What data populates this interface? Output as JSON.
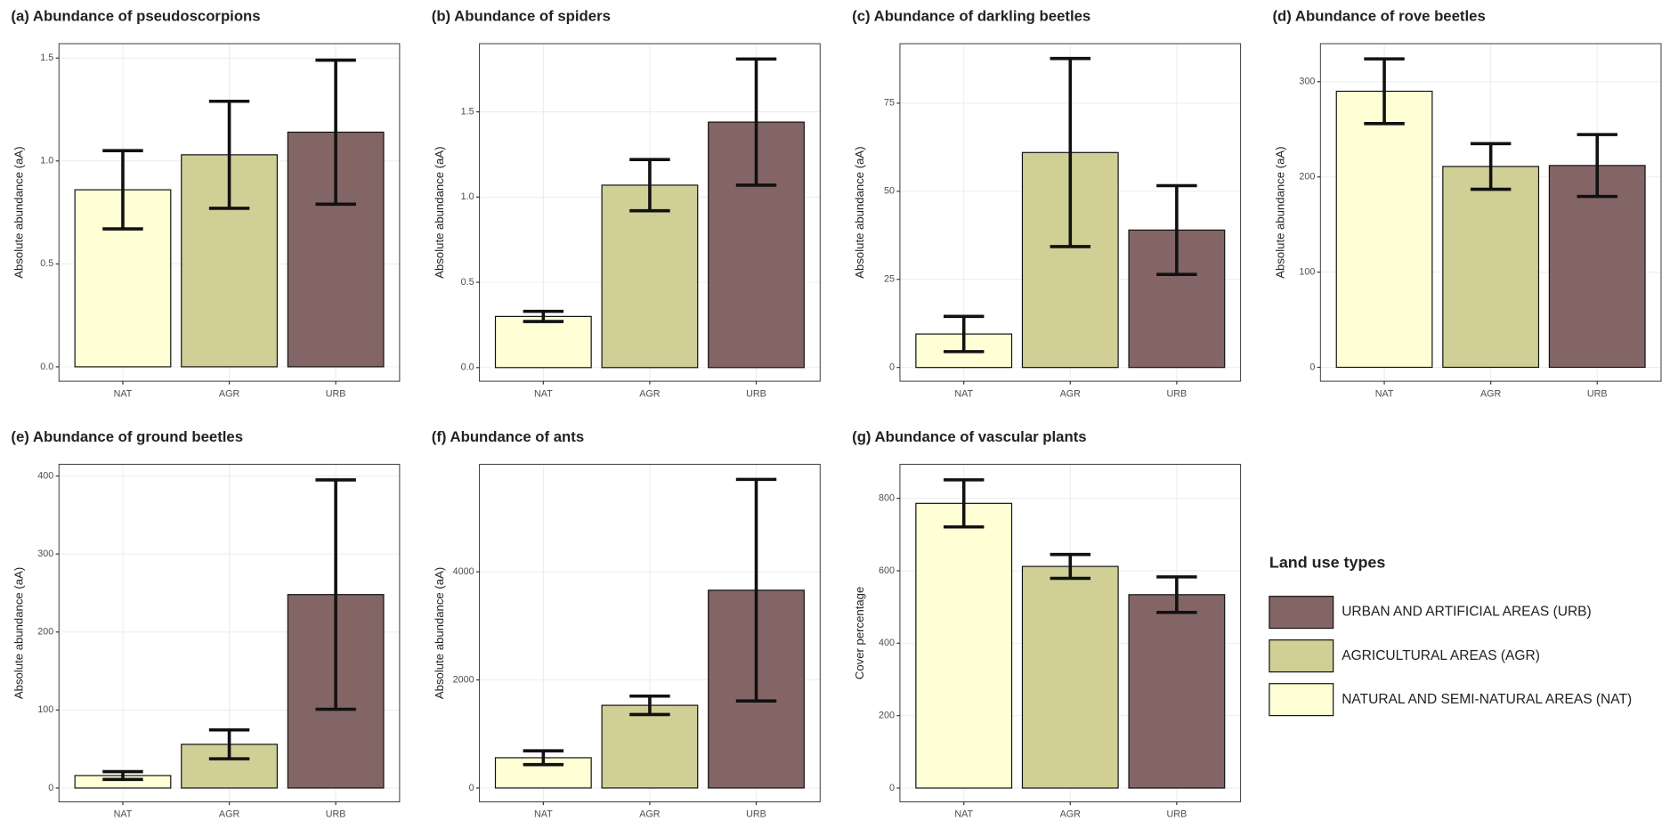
{
  "chart_data": [
    {
      "type": "bar",
      "title": "(a) Abundance of pseudoscorpions",
      "y_label": "Absolute abundance (aA)",
      "categories": [
        "NAT",
        "AGR",
        "URB"
      ],
      "values": [
        0.86,
        1.03,
        1.14
      ],
      "errors": [
        0.19,
        0.26,
        0.35
      ],
      "colors": [
        "#ffffd6",
        "#d0cf96",
        "#836566"
      ],
      "ylim": [
        -0.07,
        1.57
      ],
      "yticks": [
        {
          "value": 0,
          "label": "0.0"
        },
        0.5,
        {
          "value": 1,
          "label": "1.0"
        },
        1.5
      ],
      "grid": true
    },
    {
      "type": "bar",
      "title": "(b) Abundance of spiders",
      "y_label": "Absolute abundance (aA)",
      "categories": [
        "NAT",
        "AGR",
        "URB"
      ],
      "values": [
        0.3,
        1.07,
        1.44
      ],
      "errors": [
        0.03,
        0.15,
        0.37
      ],
      "colors": [
        "#ffffd6",
        "#d0cf96",
        "#836566"
      ],
      "ylim": [
        -0.08,
        1.9
      ],
      "yticks": [
        {
          "value": 0,
          "label": "0.0"
        },
        0.5,
        {
          "value": 1,
          "label": "1.0"
        },
        1.5
      ],
      "grid": true
    },
    {
      "type": "bar",
      "title": "(c) Abundance of darkling beetles",
      "y_label": "Absolute abundance (aA)",
      "categories": [
        "NAT",
        "AGR",
        "URB"
      ],
      "values": [
        9.5,
        61,
        39
      ],
      "errors": [
        5,
        26.7,
        12.6
      ],
      "colors": [
        "#ffffd6",
        "#d0cf96",
        "#836566"
      ],
      "ylim": [
        -3.9,
        91.9
      ],
      "yticks": [
        0,
        25,
        50,
        75
      ],
      "grid": true
    },
    {
      "type": "bar",
      "title": "(d) Abundance of rove beetles",
      "y_label": "Absolute abundance (aA)",
      "categories": [
        "NAT",
        "AGR",
        "URB"
      ],
      "values": [
        290,
        211,
        212
      ],
      "errors": [
        34,
        24,
        32.5
      ],
      "colors": [
        "#ffffd6",
        "#d0cf96",
        "#836566"
      ],
      "ylim": [
        -14.6,
        340
      ],
      "yticks": [
        0,
        100,
        200,
        300
      ],
      "grid": true
    },
    {
      "type": "bar",
      "title": "(e) Abundance of ground beetles",
      "y_label": "Absolute abundance (aA)",
      "categories": [
        "NAT",
        "AGR",
        "URB"
      ],
      "values": [
        16,
        56,
        248
      ],
      "errors": [
        5,
        18.5,
        147
      ],
      "colors": [
        "#ffffd6",
        "#d0cf96",
        "#836566"
      ],
      "ylim": [
        -17.7,
        415
      ],
      "yticks": [
        0,
        100,
        200,
        300,
        400
      ],
      "grid": true
    },
    {
      "type": "bar",
      "title": "(f) Abundance of ants",
      "y_label": "Absolute abundance (aA)",
      "categories": [
        "NAT",
        "AGR",
        "URB"
      ],
      "values": [
        560,
        1530,
        3660
      ],
      "errors": [
        128,
        170,
        2050
      ],
      "colors": [
        "#ffffd6",
        "#d0cf96",
        "#836566"
      ],
      "ylim": [
        -256,
        5990
      ],
      "yticks": [
        0,
        2000,
        4000
      ],
      "grid": true
    },
    {
      "type": "bar",
      "title": "(g) Abundance of vascular plants",
      "y_label": "Cover percentage",
      "categories": [
        "NAT",
        "AGR",
        "URB"
      ],
      "values": [
        786,
        612,
        534
      ],
      "errors": [
        65,
        33,
        49
      ],
      "colors": [
        "#ffffd6",
        "#d0cf96",
        "#836566"
      ],
      "ylim": [
        -38,
        894
      ],
      "yticks": [
        0,
        200,
        400,
        600,
        800
      ],
      "grid": true
    }
  ],
  "legend": {
    "title": "Land use types",
    "items": [
      {
        "label": "URBAN AND ARTIFICIAL AREAS (URB)",
        "color": "#836566"
      },
      {
        "label": "AGRICULTURAL AREAS (AGR)",
        "color": "#d0cf96"
      },
      {
        "label": "NATURAL AND SEMI-NATURAL AREAS (NAT)",
        "color": "#ffffd6"
      }
    ]
  }
}
